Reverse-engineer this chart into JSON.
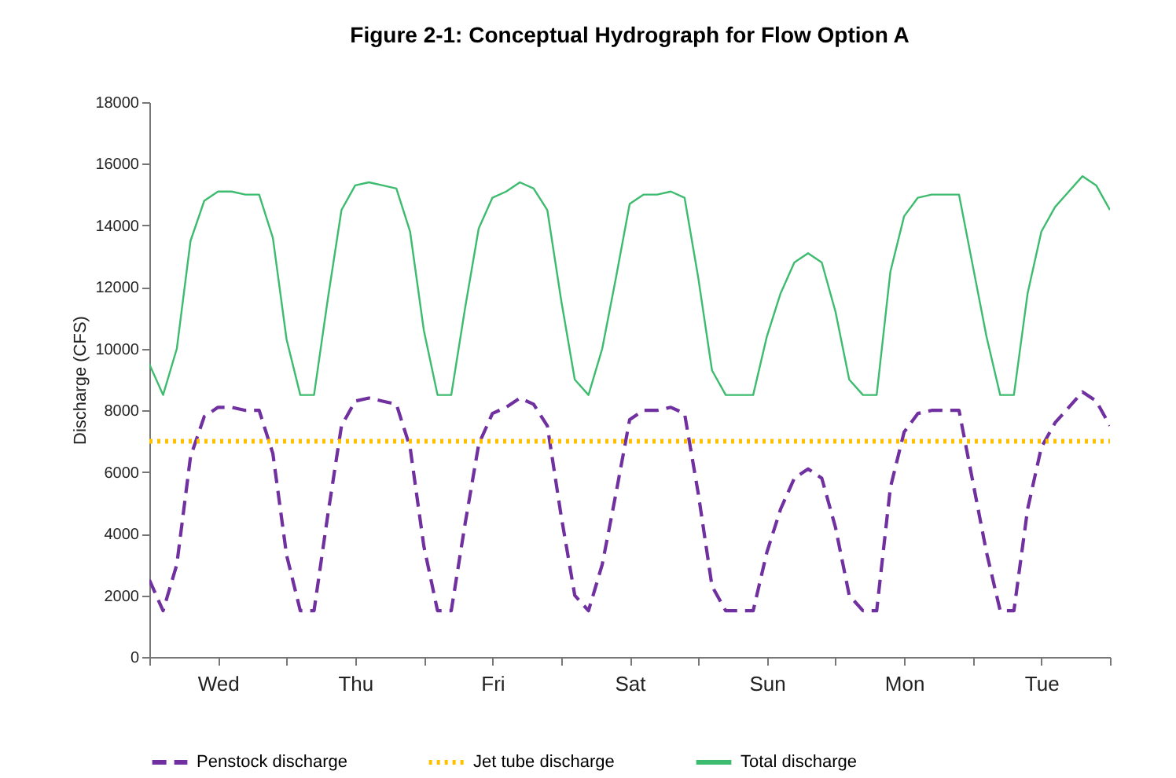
{
  "chart_data": {
    "type": "line",
    "title": "Figure 2-1: Conceptual Hydrograph for Flow Option A",
    "ylabel": "Discharge (CFS)",
    "categories": [
      null,
      null,
      null,
      null,
      null,
      "Wed",
      null,
      null,
      null,
      null,
      null,
      null,
      null,
      null,
      null,
      "Thu",
      null,
      null,
      null,
      null,
      null,
      null,
      null,
      null,
      null,
      "Fri",
      null,
      null,
      null,
      null,
      null,
      null,
      null,
      null,
      null,
      "Sat",
      null,
      null,
      null,
      null,
      null,
      null,
      null,
      null,
      null,
      "Sun",
      null,
      null,
      null,
      null,
      null,
      null,
      null,
      null,
      null,
      "Mon",
      null,
      null,
      null,
      null,
      null,
      null,
      null,
      null,
      null,
      "Tue",
      null,
      null,
      null,
      null,
      null
    ],
    "ylim": [
      0,
      18000
    ],
    "yticks": [
      0,
      2000,
      4000,
      6000,
      8000,
      10000,
      12000,
      14000,
      16000,
      18000
    ],
    "grid": false,
    "legend": "bottom",
    "marker": "none",
    "series": [
      {
        "name": "Penstock discharge",
        "color": "#7030a0",
        "line_style": "dashed",
        "values": [
          2500,
          1500,
          3000,
          6500,
          7800,
          8100,
          8100,
          8000,
          8000,
          6600,
          3300,
          1500,
          1500,
          4600,
          7500,
          8300,
          8400,
          8300,
          8200,
          6800,
          3600,
          1500,
          1500,
          4300,
          6900,
          7900,
          8100,
          8400,
          8200,
          7500,
          4600,
          2000,
          1500,
          3000,
          5300,
          7700,
          8000,
          8000,
          8100,
          7900,
          5300,
          2300,
          1500,
          1500,
          1500,
          3400,
          4800,
          5800,
          6100,
          5800,
          4200,
          2000,
          1500,
          1500,
          5500,
          7300,
          7900,
          8000,
          8000,
          8000,
          5700,
          3400,
          1500,
          1500,
          4800,
          6800,
          7600,
          8100,
          8600,
          8300,
          7500
        ]
      },
      {
        "name": "Jet tube discharge",
        "color": "#ffc000",
        "line_style": "dotted",
        "values": [
          7000,
          7000,
          7000,
          7000,
          7000,
          7000,
          7000,
          7000,
          7000,
          7000,
          7000,
          7000,
          7000,
          7000,
          7000,
          7000,
          7000,
          7000,
          7000,
          7000,
          7000,
          7000,
          7000,
          7000,
          7000,
          7000,
          7000,
          7000,
          7000,
          7000,
          7000,
          7000,
          7000,
          7000,
          7000,
          7000,
          7000,
          7000,
          7000,
          7000,
          7000,
          7000,
          7000,
          7000,
          7000,
          7000,
          7000,
          7000,
          7000,
          7000,
          7000,
          7000,
          7000,
          7000,
          7000,
          7000,
          7000,
          7000,
          7000,
          7000,
          7000,
          7000,
          7000,
          7000,
          7000,
          7000,
          7000,
          7000,
          7000,
          7000,
          7000
        ]
      },
      {
        "name": "Total discharge",
        "color": "#3dbb6e",
        "line_style": "solid",
        "values": [
          9500,
          8500,
          10000,
          13500,
          14800,
          15100,
          15100,
          15000,
          15000,
          13600,
          10300,
          8500,
          8500,
          11600,
          14500,
          15300,
          15400,
          15300,
          15200,
          13800,
          10600,
          8500,
          8500,
          11300,
          13900,
          14900,
          15100,
          15400,
          15200,
          14500,
          11600,
          9000,
          8500,
          10000,
          12300,
          14700,
          15000,
          15000,
          15100,
          14900,
          12300,
          9300,
          8500,
          8500,
          8500,
          10400,
          11800,
          12800,
          13100,
          12800,
          11200,
          9000,
          8500,
          8500,
          12500,
          14300,
          14900,
          15000,
          15000,
          15000,
          12700,
          10400,
          8500,
          8500,
          11800,
          13800,
          14600,
          15100,
          15600,
          15300,
          14500
        ]
      }
    ]
  }
}
